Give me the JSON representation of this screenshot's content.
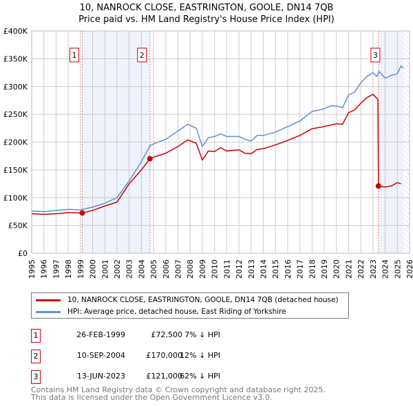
{
  "chart_data": {
    "type": "line",
    "title": "10, NANROCK CLOSE, EASTRINGTON, GOOLE, DN14 7QB",
    "subtitle": "Price paid vs. HM Land Registry's House Price Index (HPI)",
    "xlim": [
      1995,
      2026
    ],
    "ylim": [
      0,
      400000
    ],
    "x_ticks": [
      "1995",
      "1996",
      "1997",
      "1998",
      "1999",
      "2000",
      "2001",
      "2002",
      "2003",
      "2004",
      "2005",
      "2006",
      "2007",
      "2008",
      "2009",
      "2010",
      "2011",
      "2012",
      "2013",
      "2014",
      "2015",
      "2016",
      "2017",
      "2018",
      "2019",
      "2020",
      "2021",
      "2022",
      "2023",
      "2024",
      "2025",
      "2026"
    ],
    "y_ticks": [
      {
        "v": 0,
        "label": "£0"
      },
      {
        "v": 50000,
        "label": "£50K"
      },
      {
        "v": 100000,
        "label": "£100K"
      },
      {
        "v": 150000,
        "label": "£150K"
      },
      {
        "v": 200000,
        "label": "£200K"
      },
      {
        "v": 250000,
        "label": "£250K"
      },
      {
        "v": 300000,
        "label": "£300K"
      },
      {
        "v": 350000,
        "label": "£350K"
      },
      {
        "v": 400000,
        "label": "£400K"
      }
    ],
    "grid": true,
    "series": [
      {
        "name": "10, NANROCK CLOSE, EASTRINGTON, GOOLE, DN14 7QB (detached house)",
        "color": "#cc0000",
        "x": [
          1995,
          1996,
          1997,
          1998,
          1999.15,
          2000,
          2001,
          2002,
          2003,
          2004,
          2004.7,
          2005,
          2006,
          2007,
          2007.8,
          2008.5,
          2009,
          2009.5,
          2010,
          2010.5,
          2011,
          2012,
          2012.5,
          2013,
          2013.5,
          2014,
          2015,
          2016,
          2017,
          2018,
          2019,
          2020,
          2020.5,
          2021,
          2021.5,
          2022,
          2022.5,
          2023,
          2023.4,
          2023.45,
          2024,
          2024.5,
          2025,
          2025.3
        ],
        "y": [
          71000,
          70000,
          71000,
          73000,
          72500,
          77000,
          85000,
          92000,
          125000,
          150000,
          170000,
          173000,
          180000,
          192000,
          204000,
          198000,
          168000,
          184000,
          183000,
          190000,
          184000,
          186000,
          180000,
          179000,
          187000,
          188000,
          195000,
          203000,
          212000,
          224000,
          228000,
          233000,
          232000,
          253000,
          258000,
          270000,
          280000,
          286000,
          277000,
          121000,
          119000,
          121000,
          127000,
          125000
        ]
      },
      {
        "name": "HPI: Average price, detached house, East Riding of Yorkshire",
        "color": "#5b8fd4",
        "x": [
          1995,
          1996,
          1997,
          1998,
          1999,
          2000,
          2001,
          2002,
          2003,
          2004,
          2004.7,
          2005,
          2006,
          2007,
          2007.8,
          2008.5,
          2009,
          2009.5,
          2010,
          2010.5,
          2011,
          2012,
          2012.5,
          2013,
          2013.5,
          2014,
          2015,
          2016,
          2017,
          2018,
          2019,
          2019.5,
          2020,
          2020.5,
          2021,
          2021.5,
          2022,
          2022.5,
          2023,
          2023.3,
          2023.5,
          2024,
          2024.5,
          2025,
          2025.3,
          2025.5
        ],
        "y": [
          76000,
          75000,
          77000,
          79000,
          78000,
          83000,
          90000,
          100000,
          130000,
          165000,
          193000,
          197000,
          205000,
          220000,
          232000,
          225000,
          192000,
          208000,
          210000,
          215000,
          210000,
          210000,
          205000,
          202000,
          212000,
          212000,
          218000,
          228000,
          238000,
          255000,
          260000,
          265000,
          265000,
          262000,
          285000,
          290000,
          307000,
          318000,
          325000,
          318000,
          327000,
          315000,
          320000,
          323000,
          337000,
          333000
        ]
      }
    ],
    "sales": [
      {
        "num": "1",
        "x": 1999.15,
        "date": "26-FEB-1999",
        "price": "£72,500",
        "value": 72500,
        "hpi": "7% ↓ HPI"
      },
      {
        "num": "2",
        "x": 2004.7,
        "date": "10-SEP-2004",
        "price": "£170,000",
        "value": 170000,
        "hpi": "12% ↓ HPI"
      },
      {
        "num": "3",
        "x": 2023.45,
        "date": "13-JUN-2023",
        "price": "£121,000",
        "value": 121000,
        "hpi": "62% ↓ HPI"
      }
    ],
    "shaded_ranges": [
      [
        1999.15,
        2004.7
      ],
      [
        2023.45,
        2025.5
      ]
    ],
    "hatched_from": 2025.5,
    "legend_position": "below"
  },
  "footer": [
    "Contains HM Land Registry data © Crown copyright and database right 2025.",
    "This data is licensed under the Open Government Licence v3.0."
  ]
}
